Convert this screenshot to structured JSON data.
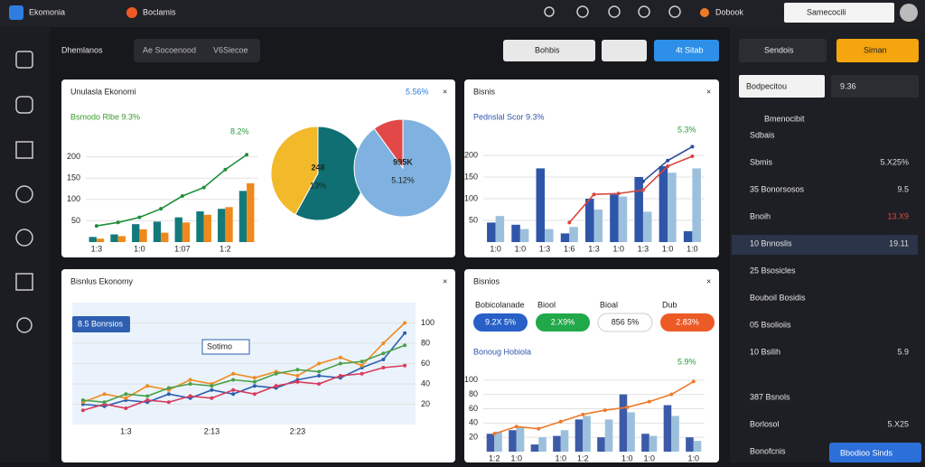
{
  "topbar": {
    "brand": "Ekomonia",
    "tab": "Boclamis",
    "nav": "Dobook",
    "user": "Samecocili"
  },
  "subbar": {
    "title": "Dhemlanos",
    "search": "Ae Socoenood",
    "search2": "V6Siecoe",
    "btn1": "Bohbis",
    "btn2": "4t Sitab"
  },
  "panels": [
    {
      "title": "Unulasla Ekonomi",
      "badge": "5.56%",
      "legend": "Bsmodo Rlbe 9.3%",
      "note": "8.2%",
      "chart": {
        "ylim": [
          0,
          250
        ],
        "yticks": [
          50,
          100,
          150,
          200
        ],
        "categories": [
          "1:3",
          null,
          "1:0",
          null,
          "1:07",
          null,
          "1:2",
          null
        ],
        "bars": [
          {
            "color": "#137a7c",
            "values": [
              12,
              18,
              42,
              48,
              58,
              72,
              78,
              120
            ]
          },
          {
            "color": "#f0891c",
            "values": [
              8,
              14,
              30,
              22,
              46,
              64,
              82,
              138
            ]
          }
        ],
        "lines": [
          {
            "color": "#1e8f3a",
            "values": [
              38,
              46,
              58,
              78,
              108,
              128,
              170,
              205
            ]
          }
        ]
      },
      "pies": [
        {
          "label": "248",
          "sub": "13%",
          "colors": [
            "#0f6f72",
            "#f2b92a"
          ],
          "values": [
            58,
            42
          ]
        },
        {
          "label": "995K",
          "sub": "5.12%",
          "colors": [
            "#7fb2e0",
            "#e24848"
          ],
          "values": [
            90,
            10
          ]
        }
      ]
    },
    {
      "title": "Bisnis",
      "legend": "Pednslal Scor 9.3%",
      "note": "5.3%",
      "chart": {
        "ylim": [
          0,
          250
        ],
        "yticks": [
          50,
          100,
          150,
          200
        ],
        "categories": [
          "1:0",
          "1:0",
          "1:3",
          "1:6",
          "1:3",
          "1:0",
          "1:3",
          "1:0",
          "1:0"
        ],
        "bars": [
          {
            "color": "#2e55a8",
            "values": [
              45,
              40,
              170,
              20,
              100,
              110,
              150,
              175,
              25
            ]
          },
          {
            "color": "#9cc0dc",
            "values": [
              60,
              30,
              30,
              35,
              75,
              105,
              70,
              160,
              170
            ]
          }
        ],
        "lines": [
          {
            "color": "#d9463c",
            "values": [
              null,
              null,
              null,
              45,
              110,
              112,
              120,
              175,
              198
            ]
          },
          {
            "color": "#2e4d9a",
            "values": [
              null,
              null,
              null,
              null,
              null,
              null,
              140,
              188,
              220
            ]
          }
        ]
      }
    },
    {
      "title": "Bisnlus Ekonomy",
      "callout": "8.5 Bonrsios",
      "callout2": "Sotimo",
      "chart": {
        "ylim": [
          0,
          120
        ],
        "yticks": [
          20,
          40,
          60,
          80,
          100
        ],
        "categories": [
          null,
          null,
          "1:3",
          null,
          null,
          null,
          "2:13",
          null,
          null,
          null,
          "2:23",
          null,
          null,
          null,
          null,
          null
        ],
        "lines": [
          {
            "color": "#2e5fb0",
            "values": [
              20,
              18,
              24,
              22,
              30,
              26,
              34,
              30,
              38,
              36,
              44,
              48,
              46,
              56,
              64,
              90
            ]
          },
          {
            "color": "#ef8b22",
            "values": [
              22,
              30,
              26,
              38,
              34,
              44,
              40,
              50,
              46,
              52,
              48,
              60,
              66,
              58,
              80,
              100
            ]
          },
          {
            "color": "#d93a5c",
            "values": [
              14,
              20,
              16,
              24,
              22,
              28,
              26,
              34,
              30,
              38,
              42,
              40,
              48,
              50,
              56,
              58
            ]
          },
          {
            "color": "#4aa04a",
            "values": [
              24,
              22,
              30,
              28,
              36,
              40,
              38,
              44,
              42,
              50,
              54,
              52,
              60,
              62,
              70,
              78
            ]
          }
        ]
      }
    },
    {
      "title": "Bisnios",
      "sub": "Bonoug Hobiola",
      "note": "5.9%",
      "pills": [
        {
          "label": "Bobicolanade",
          "value": "9.2X 5%",
          "color": "#2860c8"
        },
        {
          "label": "Biool",
          "value": "2.X9%",
          "color": "#20a84a"
        },
        {
          "label": "Bioal",
          "value": "856 5%",
          "color": "#ffffff"
        },
        {
          "label": "Dub",
          "value": "2.83%",
          "color": "#ec5a26"
        }
      ],
      "chart": {
        "ylim": [
          0,
          120
        ],
        "yticks": [
          20,
          40,
          60,
          80,
          100
        ],
        "categories": [
          "1:2",
          "1:0",
          null,
          "1:0",
          "1:2",
          null,
          "1:0",
          "1:0",
          null,
          "1:0"
        ],
        "bars": [
          {
            "color": "#3d5aa8",
            "values": [
              25,
              30,
              10,
              22,
              45,
              20,
              80,
              25,
              65,
              20
            ]
          },
          {
            "color": "#9cc0dc",
            "values": [
              28,
              34,
              20,
              30,
              50,
              45,
              55,
              22,
              50,
              15
            ]
          }
        ],
        "lines": [
          {
            "color": "#ee7a2c",
            "values": [
              25,
              35,
              32,
              42,
              52,
              58,
              62,
              70,
              80,
              98
            ]
          }
        ]
      }
    }
  ],
  "side": {
    "btn1": "Sendois",
    "btn2": "Siman",
    "field": "Bodpecitou",
    "field2": "9.36",
    "header": "Bmenocibit",
    "items": [
      {
        "label": "Sdbais"
      },
      {
        "label": "Sbmis",
        "value": "5.X25%"
      },
      {
        "label": "35 Bonorsosos",
        "value": "9.5"
      },
      {
        "label": "Bnoih",
        "value": "13.X9"
      },
      {
        "label": "10 Bnnoslis",
        "value": "19.11"
      },
      {
        "label": "25 Bsosicles"
      },
      {
        "label": "Bouboil Bosidis"
      },
      {
        "label": "05 Bsolioiis"
      },
      {
        "label": "10 Bsilih",
        "value": "5.9"
      },
      {
        "label": "387 Bsnols"
      },
      {
        "label": "Borlosol",
        "value": "5.X25"
      },
      {
        "label": "Bonofcnis"
      }
    ],
    "button": "Bbodioo Sinds"
  }
}
